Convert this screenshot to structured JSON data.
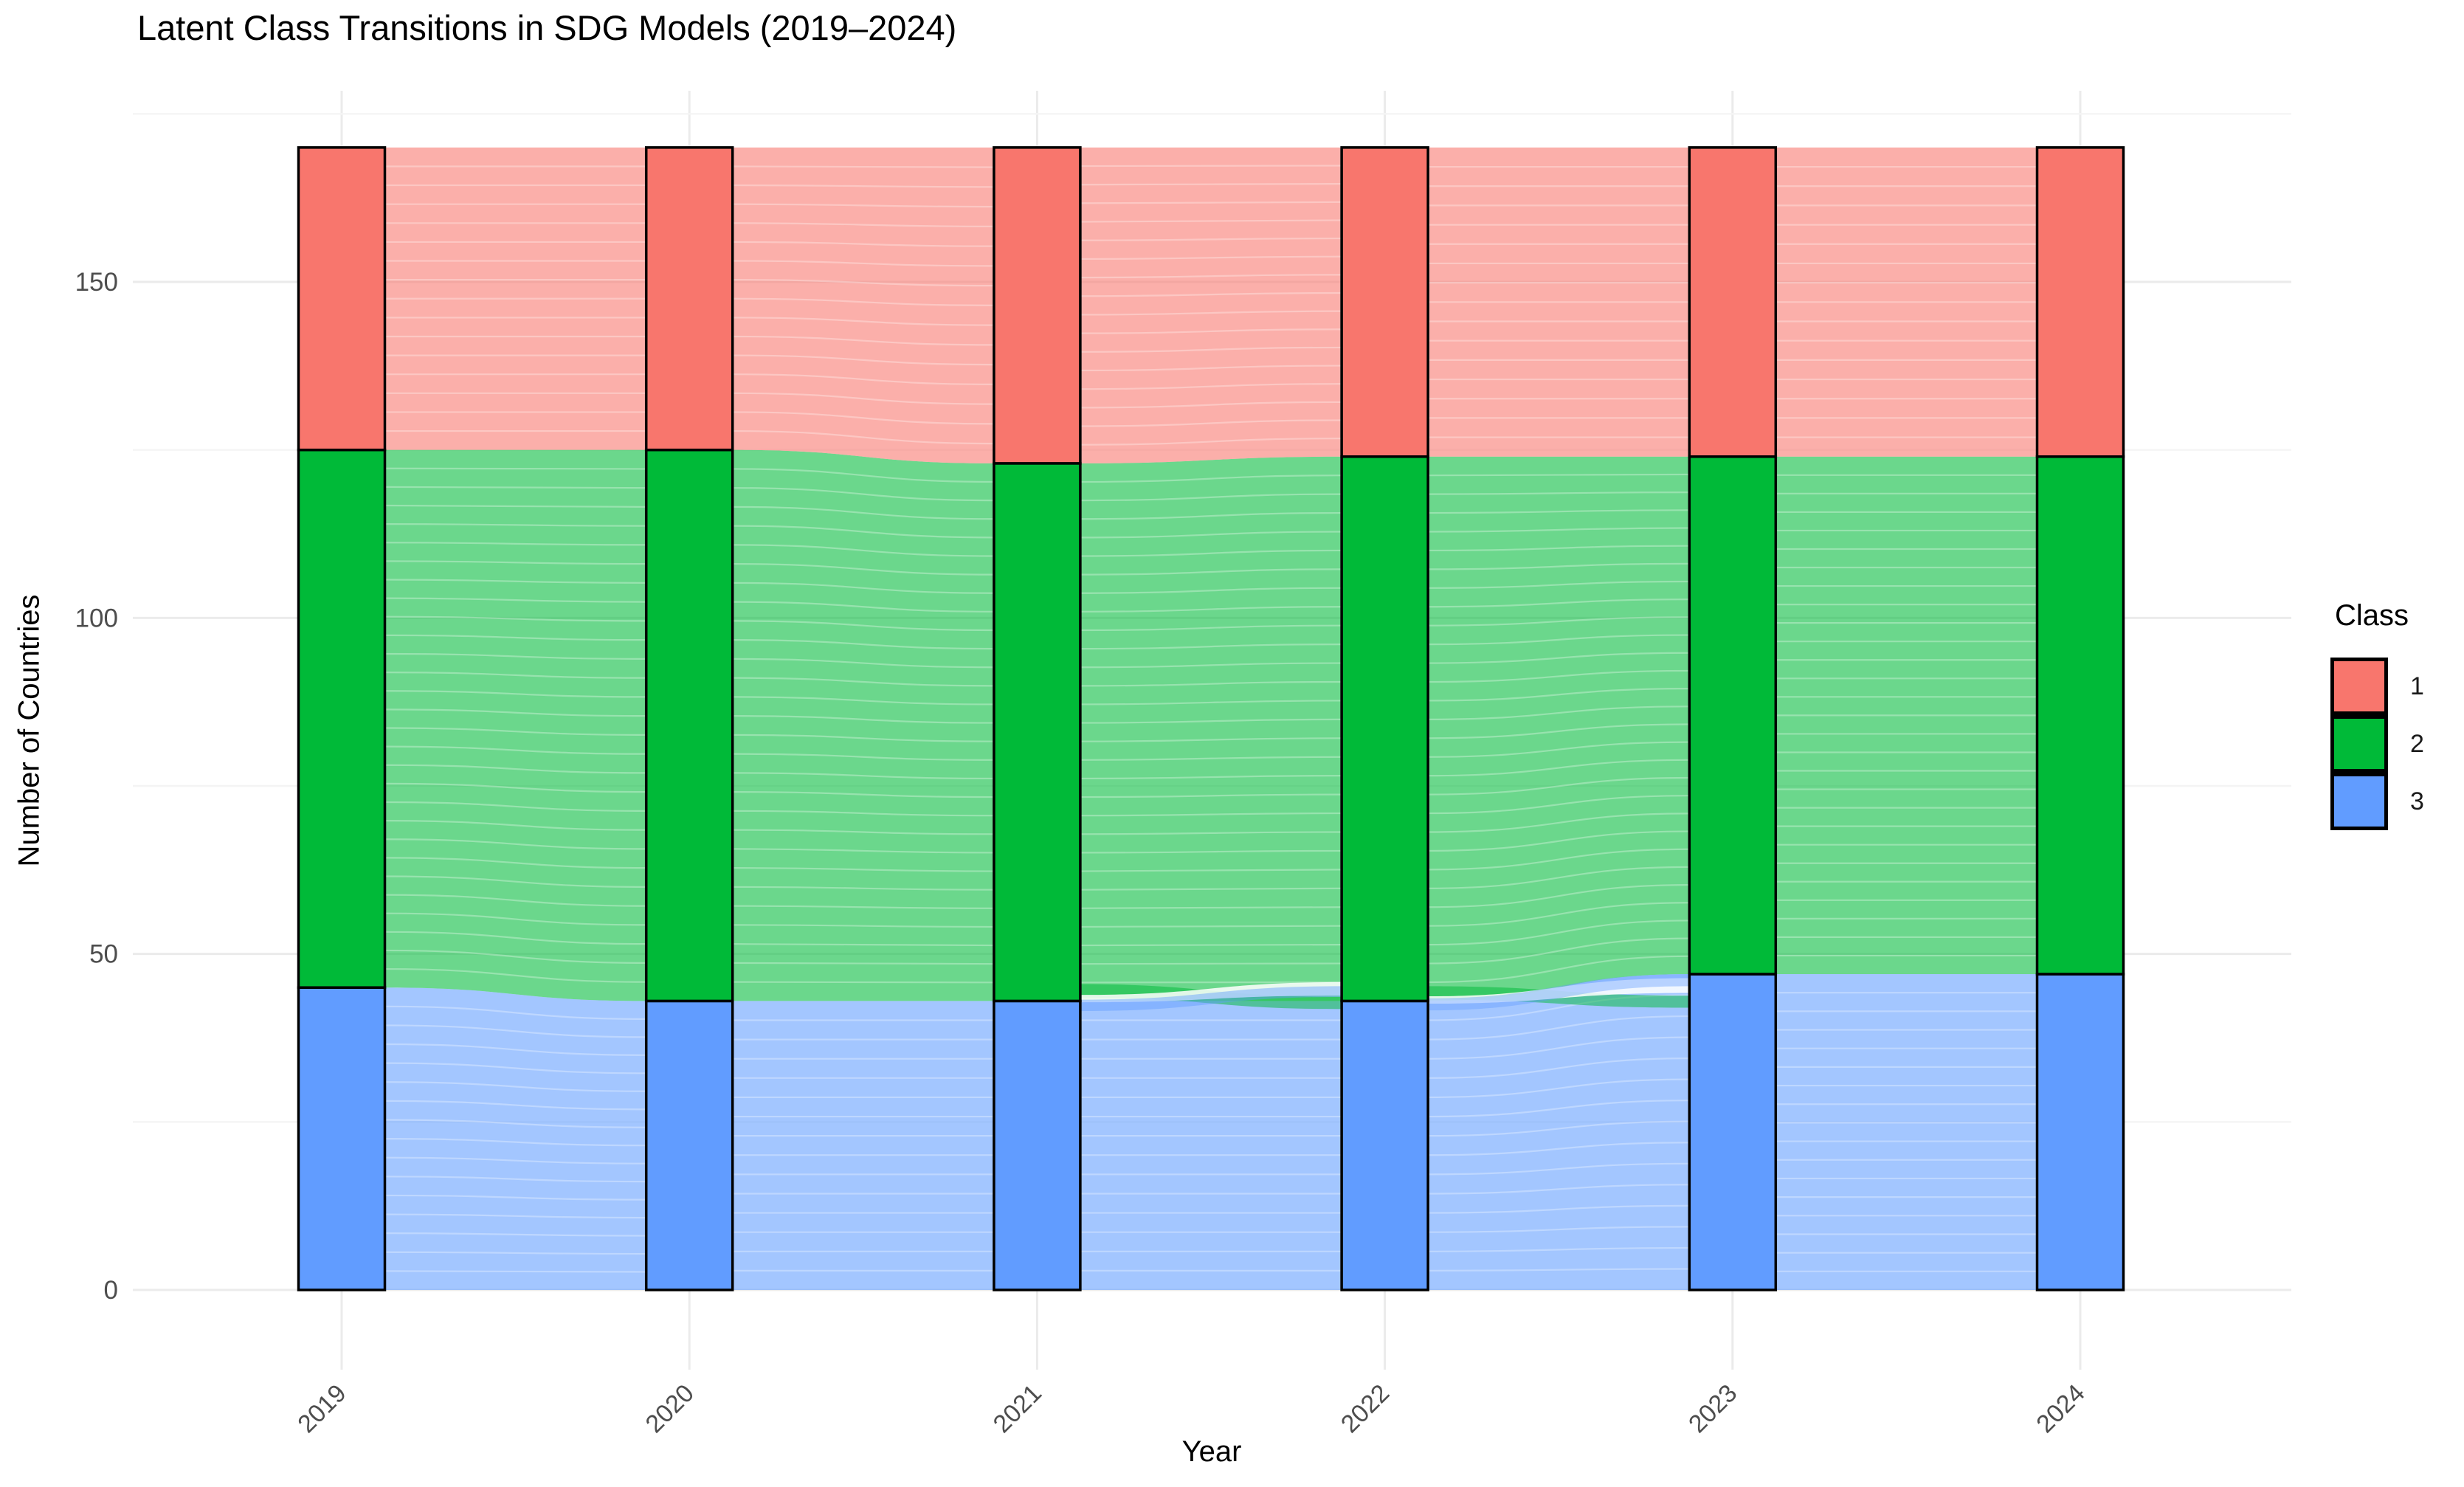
{
  "chart_data": {
    "type": "alluvial",
    "title": "Latent Class Transitions in SDG Models (2019–2024)",
    "xlabel": "Year",
    "ylabel": "Number of Countries",
    "categories": [
      "2019",
      "2020",
      "2021",
      "2022",
      "2023",
      "2024"
    ],
    "stack_order_bottom_to_top": [
      "3",
      "2",
      "1"
    ],
    "series": [
      {
        "name": "1",
        "color": "#F8766D",
        "values": [
          45,
          45,
          47,
          46,
          46,
          46
        ]
      },
      {
        "name": "2",
        "color": "#00BA38",
        "values": [
          80,
          82,
          80,
          81,
          77,
          77
        ]
      },
      {
        "name": "3",
        "color": "#619CFF",
        "values": [
          45,
          43,
          43,
          43,
          47,
          47
        ]
      }
    ],
    "total_per_year": 170,
    "y_ticks": [
      0,
      50,
      100,
      150
    ],
    "y_minor_ticks": [
      25,
      75,
      125,
      175
    ],
    "ylim": [
      -8.5,
      178.5
    ],
    "grid": true,
    "legend": {
      "position": "right",
      "title": "Class",
      "entries": [
        {
          "label": "1",
          "color": "#F8766D"
        },
        {
          "label": "2",
          "color": "#00BA38"
        },
        {
          "label": "3",
          "color": "#619CFF"
        }
      ]
    },
    "flow_opacity": 0.58,
    "crossings": [
      {
        "from": "2021",
        "to": "2022",
        "streaks": [
          {
            "color": "#00BA38",
            "left": [
              43.5,
              45.5
            ],
            "right": [
              41.8,
              43.6
            ],
            "opacity": 0.5
          },
          {
            "color": "#FFFFFF",
            "left": [
              42.8,
              43.9
            ],
            "right": [
              43.8,
              45.8
            ],
            "opacity": 0.85
          },
          {
            "color": "#619CFF",
            "left": [
              41.5,
              43.2
            ],
            "right": [
              43.6,
              45.2
            ],
            "opacity": 0.45
          }
        ]
      },
      {
        "from": "2022",
        "to": "2023",
        "streaks": [
          {
            "color": "#00BA38",
            "left": [
              43.2,
              45.2
            ],
            "right": [
              42.0,
              43.8
            ],
            "opacity": 0.5
          },
          {
            "color": "#FFFFFF",
            "left": [
              42.6,
              43.7
            ],
            "right": [
              44.2,
              46.4
            ],
            "opacity": 0.85
          },
          {
            "color": "#619CFF",
            "left": [
              41.6,
              43.4
            ],
            "right": [
              45.2,
              47.0
            ],
            "opacity": 0.4
          }
        ]
      }
    ],
    "style": {
      "major_grid_color": "#EBEBEB",
      "minor_grid_color": "#F4F4F4",
      "tick_label_color": "#4D4D4D",
      "stratum_border_color": "#000000"
    }
  }
}
